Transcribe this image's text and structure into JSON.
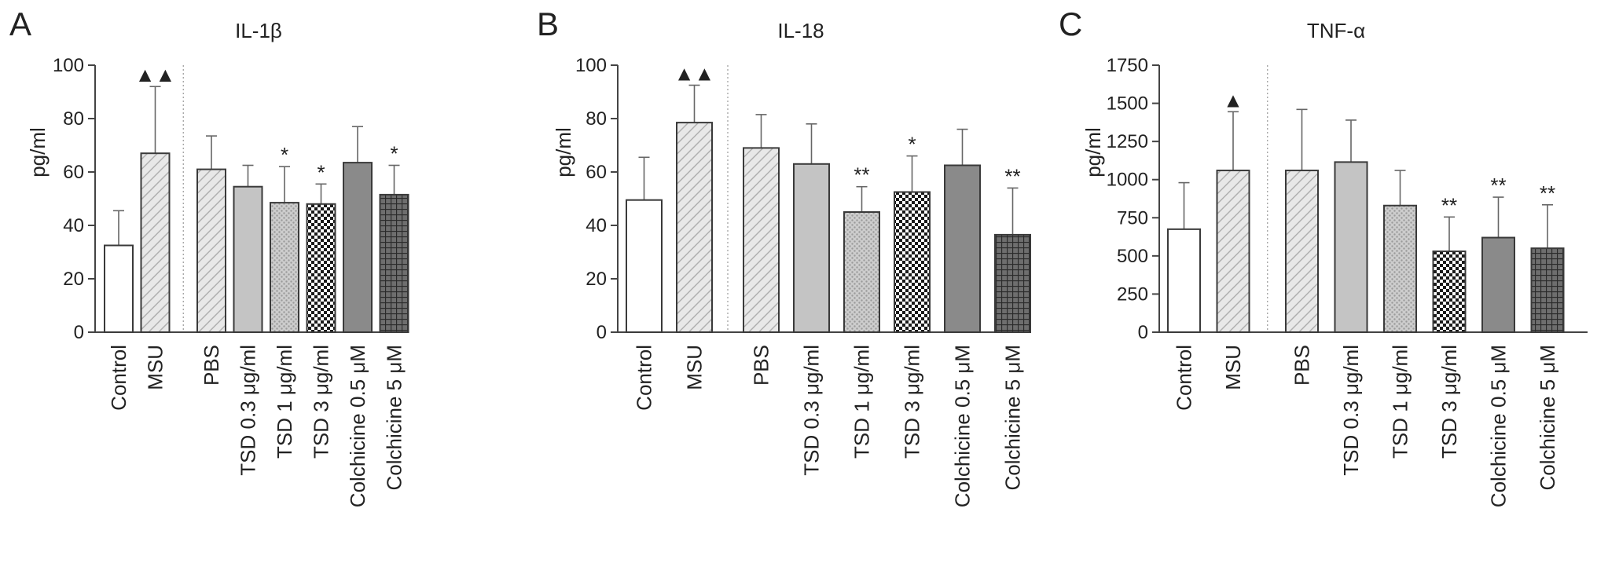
{
  "chart_data": [
    {
      "type": "bar",
      "panel": "A",
      "title": "IL-1β",
      "ylabel": "pg/ml",
      "ylim": [
        0,
        100
      ],
      "yticks": [
        0,
        20,
        40,
        60,
        80,
        100
      ],
      "categories": [
        "Control",
        "MSU",
        "PBS",
        "TSD 0.3 μg/ml",
        "TSD 1 μg/ml",
        "TSD 3 μg/ml",
        "Colchicine 0.5 μM",
        "Colchicine 5 μM"
      ],
      "values": [
        32.5,
        67,
        61,
        54.5,
        48.5,
        48,
        63.5,
        51.5
      ],
      "errors": [
        13,
        25,
        12.5,
        8,
        13.5,
        7.5,
        13.5,
        11
      ],
      "significance": [
        "",
        "▲▲",
        "",
        "",
        "*",
        "*",
        "",
        "*"
      ],
      "divider_after_index": 1,
      "grid": false
    },
    {
      "type": "bar",
      "panel": "B",
      "title": "IL-18",
      "ylabel": "pg/ml",
      "ylim": [
        0,
        100
      ],
      "yticks": [
        0,
        20,
        40,
        60,
        80,
        100
      ],
      "categories": [
        "Control",
        "MSU",
        "PBS",
        "TSD 0.3 μg/ml",
        "TSD 1 μg/ml",
        "TSD 3 μg/ml",
        "Colchicine 0.5 μM",
        "Colchicine 5 μM"
      ],
      "values": [
        49.5,
        78.5,
        69,
        63,
        45,
        52.5,
        62.5,
        36.5
      ],
      "errors": [
        16,
        14,
        12.5,
        15,
        9.5,
        13.5,
        13.5,
        17.5
      ],
      "significance": [
        "",
        "▲▲",
        "",
        "",
        "**",
        "*",
        "",
        "**"
      ],
      "divider_after_index": 1,
      "grid": false
    },
    {
      "type": "bar",
      "panel": "C",
      "title": "TNF-α",
      "ylabel": "pg/ml",
      "ylim": [
        0,
        1750
      ],
      "yticks": [
        0,
        250,
        500,
        750,
        1000,
        1250,
        1500,
        1750
      ],
      "categories": [
        "Control",
        "MSU",
        "PBS",
        "TSD 0.3 μg/ml",
        "TSD 1 μg/ml",
        "TSD 3 μg/ml",
        "Colchicine 0.5 μM",
        "Colchicine 5 μM"
      ],
      "values": [
        675,
        1060,
        1060,
        1115,
        830,
        530,
        620,
        550
      ],
      "errors": [
        305,
        385,
        400,
        275,
        230,
        225,
        265,
        285
      ],
      "significance": [
        "",
        "▲",
        "",
        "",
        "",
        "**",
        "**",
        "**"
      ],
      "divider_after_index": 1,
      "grid": false
    }
  ],
  "bar_styles": [
    {
      "fill": "#ffffff",
      "pattern": "none"
    },
    {
      "fill": "#e6e6e6",
      "pattern": "diagonal",
      "line": "#b0b0b0"
    },
    {
      "fill": "#e6e6e6",
      "pattern": "diagonal",
      "line": "#b0b0b0"
    },
    {
      "fill": "#c4c4c4",
      "pattern": "none"
    },
    {
      "fill": "#c8c8c8",
      "pattern": "dots",
      "line": "#9a9a9a"
    },
    {
      "fill": "#ffffff",
      "pattern": "checker",
      "line": "#1a1a1a"
    },
    {
      "fill": "#8a8a8a",
      "pattern": "none"
    },
    {
      "fill": "#6a6a6a",
      "pattern": "grid",
      "line": "#2a2a2a"
    }
  ]
}
